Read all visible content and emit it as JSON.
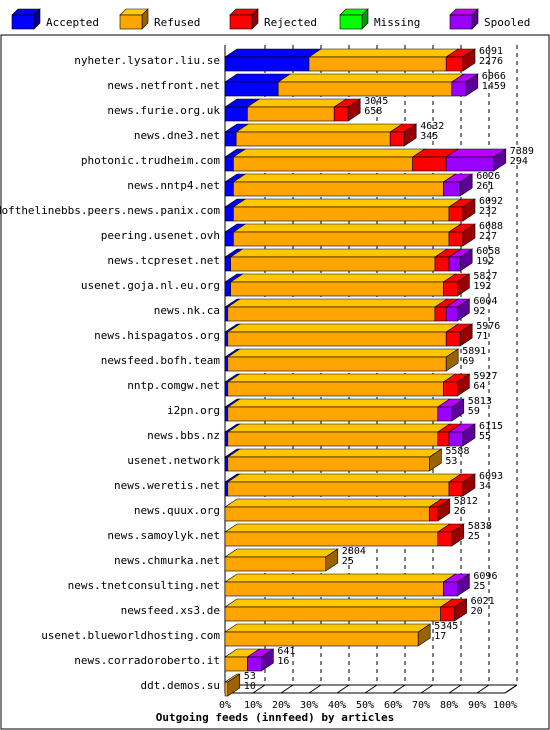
{
  "colors": {
    "accepted": "#0000ff",
    "refused": "#ffa500",
    "rejected": "#ff0000",
    "missing": "#00ff00",
    "spooled": "#9900ff"
  },
  "chart_data": {
    "type": "bar",
    "orientation": "horizontal",
    "stacked": true,
    "three_d": true,
    "xlabel": "Outgoing feeds (innfeed) by articles",
    "x_tick_labels": [
      "0%",
      "10%",
      "20%",
      "30%",
      "40%",
      "50%",
      "60%",
      "70%",
      "80%",
      "90%",
      "100%"
    ],
    "xlim": [
      0,
      100
    ],
    "legend": {
      "placement": "top",
      "items": [
        {
          "key": "accepted",
          "label": "Accepted"
        },
        {
          "key": "refused",
          "label": "Refused"
        },
        {
          "key": "rejected",
          "label": "Rejected"
        },
        {
          "key": "missing",
          "label": "Missing"
        },
        {
          "key": "spooled",
          "label": "Spooled"
        }
      ]
    },
    "rows": [
      {
        "name": "nyheter.lysator.liu.se",
        "offered": "6091",
        "accepted_count": "2276",
        "segments": {
          "accepted": 30,
          "refused": 49,
          "rejected": 6,
          "missing": 0,
          "spooled": 0
        }
      },
      {
        "name": "news.netfront.net",
        "offered": "6066",
        "accepted_count": "1459",
        "segments": {
          "accepted": 19,
          "refused": 62,
          "rejected": 0,
          "missing": 0,
          "spooled": 5
        }
      },
      {
        "name": "news.furie.org.uk",
        "offered": "3045",
        "accepted_count": "658",
        "segments": {
          "accepted": 8,
          "refused": 31,
          "rejected": 5,
          "missing": 0,
          "spooled": 0
        }
      },
      {
        "name": "news.dne3.net",
        "offered": "4632",
        "accepted_count": "345",
        "segments": {
          "accepted": 4,
          "refused": 55,
          "rejected": 5,
          "missing": 0,
          "spooled": 0
        }
      },
      {
        "name": "photonic.trudheim.com",
        "offered": "7389",
        "accepted_count": "294",
        "segments": {
          "accepted": 3,
          "refused": 64,
          "rejected": 12,
          "missing": 0,
          "spooled": 17
        }
      },
      {
        "name": "news.nntp4.net",
        "offered": "6026",
        "accepted_count": "261",
        "segments": {
          "accepted": 3,
          "refused": 75,
          "rejected": 0,
          "missing": 0,
          "spooled": 6
        }
      },
      {
        "name": "endofthelinebbs.peers.news.panix.com",
        "offered": "6092",
        "accepted_count": "232",
        "segments": {
          "accepted": 3,
          "refused": 77,
          "rejected": 5,
          "missing": 0,
          "spooled": 0
        }
      },
      {
        "name": "peering.usenet.ovh",
        "offered": "6088",
        "accepted_count": "227",
        "segments": {
          "accepted": 3,
          "refused": 77,
          "rejected": 5,
          "missing": 0,
          "spooled": 0
        }
      },
      {
        "name": "news.tcpreset.net",
        "offered": "6058",
        "accepted_count": "192",
        "segments": {
          "accepted": 2,
          "refused": 73,
          "rejected": 5,
          "missing": 0,
          "spooled": 4
        }
      },
      {
        "name": "usenet.goja.nl.eu.org",
        "offered": "5827",
        "accepted_count": "192",
        "segments": {
          "accepted": 2,
          "refused": 76,
          "rejected": 5,
          "missing": 0,
          "spooled": 0
        }
      },
      {
        "name": "news.nk.ca",
        "offered": "6004",
        "accepted_count": "92",
        "segments": {
          "accepted": 1,
          "refused": 74,
          "rejected": 4,
          "missing": 0,
          "spooled": 4
        }
      },
      {
        "name": "news.hispagatos.org",
        "offered": "5976",
        "accepted_count": "71",
        "segments": {
          "accepted": 1,
          "refused": 78,
          "rejected": 5,
          "missing": 0,
          "spooled": 0
        }
      },
      {
        "name": "newsfeed.bofh.team",
        "offered": "5891",
        "accepted_count": "69",
        "segments": {
          "accepted": 1,
          "refused": 78,
          "rejected": 0,
          "missing": 0,
          "spooled": 0
        }
      },
      {
        "name": "nntp.comgw.net",
        "offered": "5927",
        "accepted_count": "64",
        "segments": {
          "accepted": 1,
          "refused": 77,
          "rejected": 5,
          "missing": 0,
          "spooled": 0
        }
      },
      {
        "name": "i2pn.org",
        "offered": "5813",
        "accepted_count": "59",
        "segments": {
          "accepted": 1,
          "refused": 75,
          "rejected": 0,
          "missing": 0,
          "spooled": 5
        }
      },
      {
        "name": "news.bbs.nz",
        "offered": "6115",
        "accepted_count": "55",
        "segments": {
          "accepted": 1,
          "refused": 75,
          "rejected": 4,
          "missing": 0,
          "spooled": 5
        }
      },
      {
        "name": "usenet.network",
        "offered": "5588",
        "accepted_count": "53",
        "segments": {
          "accepted": 1,
          "refused": 72,
          "rejected": 0,
          "missing": 0,
          "spooled": 0
        }
      },
      {
        "name": "news.weretis.net",
        "offered": "6093",
        "accepted_count": "34",
        "segments": {
          "accepted": 1,
          "refused": 79,
          "rejected": 5,
          "missing": 0,
          "spooled": 0
        }
      },
      {
        "name": "news.quux.org",
        "offered": "5812",
        "accepted_count": "26",
        "segments": {
          "accepted": 0,
          "refused": 73,
          "rejected": 3,
          "missing": 0,
          "spooled": 0
        }
      },
      {
        "name": "news.samoylyk.net",
        "offered": "5838",
        "accepted_count": "25",
        "segments": {
          "accepted": 0,
          "refused": 76,
          "rejected": 5,
          "missing": 0,
          "spooled": 0
        }
      },
      {
        "name": "news.chmurka.net",
        "offered": "2804",
        "accepted_count": "25",
        "segments": {
          "accepted": 0,
          "refused": 36,
          "rejected": 0,
          "missing": 0,
          "spooled": 0
        }
      },
      {
        "name": "news.tnetconsulting.net",
        "offered": "6096",
        "accepted_count": "25",
        "segments": {
          "accepted": 0,
          "refused": 78,
          "rejected": 0,
          "missing": 0,
          "spooled": 5
        }
      },
      {
        "name": "newsfeed.xs3.de",
        "offered": "6021",
        "accepted_count": "20",
        "segments": {
          "accepted": 0,
          "refused": 77,
          "rejected": 5,
          "missing": 0,
          "spooled": 0
        }
      },
      {
        "name": "usenet.blueworldhosting.com",
        "offered": "5345",
        "accepted_count": "17",
        "segments": {
          "accepted": 0,
          "refused": 69,
          "rejected": 0,
          "missing": 0,
          "spooled": 0
        }
      },
      {
        "name": "news.corradoroberto.it",
        "offered": "641",
        "accepted_count": "16",
        "segments": {
          "accepted": 0,
          "refused": 8,
          "rejected": 0,
          "missing": 0,
          "spooled": 5
        }
      },
      {
        "name": "ddt.demos.su",
        "offered": "53",
        "accepted_count": "10",
        "segments": {
          "accepted": 0,
          "refused": 1,
          "rejected": 0,
          "missing": 0,
          "spooled": 0
        }
      }
    ]
  }
}
